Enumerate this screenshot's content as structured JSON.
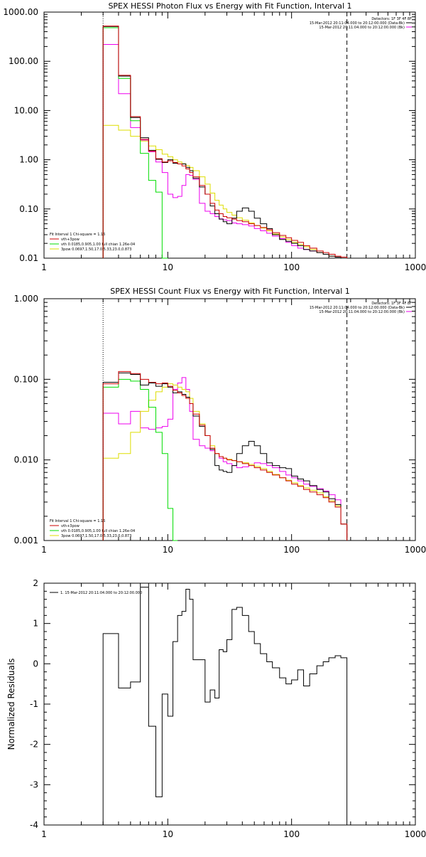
{
  "colors": {
    "data": "#000000",
    "total": "#cc0000",
    "thermal": "#00dd00",
    "powerlaw": "#dddd00",
    "background": "#ee00ee",
    "axis": "#000000"
  },
  "chart_data": [
    {
      "type": "line",
      "title": "SPEX HESSI Photon Flux vs Energy with Fit Function, Interval 1",
      "xscale": "log",
      "yscale": "log",
      "xlim": [
        1,
        1000
      ],
      "ylim": [
        0.01,
        1000
      ],
      "xticklabels": [
        "1",
        "10",
        "100",
        "1000"
      ],
      "yticklabels": [
        "0.01",
        "0.10",
        "1.00",
        "10.00",
        "100.00",
        "1000.00"
      ],
      "legend_right": [
        "Detectors: 1F 3F 4F 8F",
        "15-Mar-2012 20:11:04.000 to 20:12:00.000 (Data-Bk)",
        "15-Mar-2012 20:11:04.000 to 20:12:00.000 (Bk)"
      ],
      "legend_left": [
        "Fit Interval 1    Chi-square = 1.16",
        "vth+3pow",
        "vth 0.0185,0.905,1.00  full chian 1.26e-04",
        "3pow 0.0697,1.50,17.0,5.33,23.0,0.873"
      ],
      "xlines": [
        3,
        280
      ],
      "bin_edges": [
        3,
        4,
        5,
        6,
        7,
        8,
        9,
        10,
        11,
        12,
        13,
        14,
        15,
        16,
        18,
        20,
        22,
        24,
        26,
        28,
        30,
        33,
        36,
        40,
        45,
        50,
        56,
        63,
        70,
        80,
        90,
        100,
        112,
        125,
        140,
        160,
        180,
        200,
        225,
        250,
        280
      ],
      "series": [
        {
          "role": "data",
          "values": [
            510,
            50,
            7.2,
            2.8,
            1.55,
            1.02,
            0.88,
            1.0,
            0.85,
            0.82,
            0.82,
            0.7,
            0.6,
            0.42,
            0.28,
            0.2,
            0.115,
            0.08,
            0.062,
            0.055,
            0.05,
            0.065,
            0.09,
            0.105,
            0.09,
            0.065,
            0.05,
            0.04,
            0.03,
            0.024,
            0.022,
            0.02,
            0.018,
            0.015,
            0.014,
            0.013,
            0.012,
            0.011,
            0.0105,
            0.01
          ]
        },
        {
          "role": "total",
          "values": [
            520,
            52,
            7.5,
            2.6,
            1.5,
            1.05,
            0.9,
            0.95,
            0.88,
            0.82,
            0.75,
            0.65,
            0.55,
            0.45,
            0.3,
            0.2,
            0.13,
            0.095,
            0.08,
            0.07,
            0.066,
            0.062,
            0.058,
            0.055,
            0.05,
            0.046,
            0.042,
            0.038,
            0.033,
            0.029,
            0.026,
            0.023,
            0.021,
            0.018,
            0.016,
            0.014,
            0.013,
            0.012,
            0.011,
            0.0105
          ]
        },
        {
          "role": "thermal",
          "values": [
            480,
            45,
            6.2,
            1.35,
            0.38,
            0.22,
            0.0095
          ]
        },
        {
          "role": "powerlaw",
          "values": [
            5.0,
            4.0,
            3.0,
            2.4,
            1.9,
            1.6,
            1.3,
            1.15,
            1.0,
            0.9,
            0.83,
            0.76,
            0.7,
            0.6,
            0.45,
            0.32,
            0.21,
            0.15,
            0.12,
            0.1,
            0.085,
            0.075,
            0.066,
            0.059,
            0.052,
            0.046,
            0.041,
            0.036,
            0.031,
            0.027,
            0.024,
            0.021,
            0.019,
            0.017,
            0.015,
            0.013,
            0.012,
            0.011,
            0.0105,
            0.0098
          ]
        },
        {
          "role": "background",
          "values": [
            220,
            22,
            4.5,
            2.5,
            1.45,
            0.9,
            0.55,
            0.2,
            0.17,
            0.18,
            0.3,
            0.5,
            0.48,
            0.4,
            0.13,
            0.09,
            0.08,
            0.07,
            0.063,
            0.06,
            0.058,
            0.052,
            0.05,
            0.048,
            0.045,
            0.04,
            0.036,
            0.032,
            0.028,
            0.025,
            0.021,
            0.018,
            0.016,
            0.015,
            0.014,
            0.013,
            0.012,
            0.011,
            0.0105,
            0.01
          ]
        }
      ]
    },
    {
      "type": "line",
      "title": "SPEX HESSI Count Flux vs Energy with Fit Function, Interval 1",
      "xscale": "log",
      "yscale": "log",
      "xlim": [
        1,
        1000
      ],
      "ylim": [
        0.001,
        1
      ],
      "xticklabels": [
        "1",
        "10",
        "100",
        "1000"
      ],
      "yticklabels": [
        "0.001",
        "0.010",
        "0.100",
        "1.000"
      ],
      "legend_right": [
        "Detectors: 1F 3F 4F 8F",
        "15-Mar-2012 20:11:04.000 to 20:12:00.000 (Data-Bk)",
        "15-Mar-2012 20:11:04.000 to 20:12:00.000 (Bk)"
      ],
      "legend_left": [
        "Fit Interval 1    Chi-square = 1.16",
        "vth+3pow",
        "vth 0.0185,0.905,1.00  full chian 1.26e-04",
        "3pow 0.0697,1.50,17.0,5.33,23.0,0.873"
      ],
      "xlines": [
        3,
        280
      ],
      "bin_edges": [
        3,
        4,
        5,
        6,
        7,
        8,
        9,
        10,
        11,
        12,
        13,
        14,
        15,
        16,
        18,
        20,
        22,
        24,
        26,
        28,
        30,
        33,
        36,
        40,
        45,
        50,
        56,
        63,
        70,
        80,
        90,
        100,
        112,
        125,
        140,
        160,
        180,
        200,
        225,
        250,
        280
      ],
      "series": [
        {
          "role": "data",
          "values": [
            0.092,
            0.12,
            0.115,
            0.085,
            0.09,
            0.082,
            0.088,
            0.08,
            0.068,
            0.07,
            0.065,
            0.06,
            0.05,
            0.035,
            0.026,
            0.02,
            0.0135,
            0.0085,
            0.0075,
            0.0072,
            0.007,
            0.0085,
            0.012,
            0.015,
            0.017,
            0.015,
            0.012,
            0.0092,
            0.0085,
            0.008,
            0.0078,
            0.0063,
            0.0058,
            0.0055,
            0.0048,
            0.0043,
            0.004,
            0.0033,
            0.0028,
            0.0016
          ]
        },
        {
          "role": "total",
          "values": [
            0.088,
            0.125,
            0.118,
            0.1,
            0.092,
            0.088,
            0.09,
            0.082,
            0.073,
            0.068,
            0.063,
            0.058,
            0.05,
            0.037,
            0.027,
            0.02,
            0.014,
            0.012,
            0.011,
            0.0105,
            0.01,
            0.0098,
            0.0095,
            0.009,
            0.0085,
            0.008,
            0.0075,
            0.007,
            0.0065,
            0.006,
            0.0055,
            0.005,
            0.0047,
            0.0043,
            0.004,
            0.0037,
            0.0034,
            0.003,
            0.0026,
            0.0016
          ]
        },
        {
          "role": "thermal",
          "values": [
            0.08,
            0.1,
            0.095,
            0.075,
            0.045,
            0.022,
            0.012,
            0.0025,
            0.0009
          ]
        },
        {
          "role": "powerlaw",
          "values": [
            0.0105,
            0.012,
            0.022,
            0.04,
            0.055,
            0.07,
            0.08,
            0.088,
            0.085,
            0.08,
            0.075,
            0.07,
            0.058,
            0.04,
            0.028,
            0.02,
            0.015,
            0.012,
            0.011,
            0.0105,
            0.0102,
            0.0098,
            0.0095,
            0.0092,
            0.0088,
            0.0083,
            0.0078,
            0.0072,
            0.0066,
            0.006,
            0.0056,
            0.0052,
            0.0048,
            0.0045,
            0.0042,
            0.0039,
            0.0035,
            0.0031,
            0.0027,
            0.0016
          ]
        },
        {
          "role": "background",
          "values": [
            0.038,
            0.028,
            0.04,
            0.025,
            0.024,
            0.025,
            0.026,
            0.032,
            0.075,
            0.09,
            0.105,
            0.075,
            0.04,
            0.018,
            0.015,
            0.014,
            0.013,
            0.012,
            0.0105,
            0.0095,
            0.009,
            0.0085,
            0.008,
            0.0082,
            0.0088,
            0.0092,
            0.009,
            0.0085,
            0.008,
            0.0072,
            0.0065,
            0.006,
            0.0055,
            0.005,
            0.0047,
            0.0044,
            0.0041,
            0.0037,
            0.0032,
            0.0016
          ]
        }
      ]
    },
    {
      "type": "line",
      "title": "",
      "ylabel": "Normalized Residuals",
      "xscale": "log",
      "yscale": "linear",
      "xlim": [
        1,
        1000
      ],
      "ylim": [
        -4,
        2
      ],
      "xticklabels": [
        "1",
        "10",
        "100",
        "1000"
      ],
      "yticklabels": [
        "-4",
        "-3",
        "-2",
        "-1",
        "0",
        "1",
        "2"
      ],
      "legend_left": [
        "1. 15-Mar-2012 20:11:04.000 to 20:12:00.000"
      ],
      "bin_edges": [
        3,
        4,
        5,
        6,
        7,
        8,
        9,
        10,
        11,
        12,
        13,
        14,
        15,
        16,
        18,
        20,
        22,
        24,
        26,
        28,
        30,
        33,
        36,
        40,
        45,
        50,
        56,
        63,
        70,
        80,
        90,
        100,
        112,
        125,
        140,
        160,
        180,
        200,
        225,
        250,
        280
      ],
      "series": [
        {
          "role": "data",
          "values": [
            0.75,
            -0.6,
            -0.45,
            1.9,
            -1.55,
            -3.3,
            -0.75,
            -1.3,
            0.55,
            1.2,
            1.3,
            1.85,
            1.6,
            0.1,
            0.1,
            -0.95,
            -0.65,
            -0.85,
            0.35,
            0.3,
            0.6,
            1.35,
            1.4,
            1.2,
            0.8,
            0.5,
            0.25,
            0.05,
            -0.1,
            -0.35,
            -0.5,
            -0.4,
            -0.15,
            -0.55,
            -0.25,
            -0.05,
            0.05,
            0.15,
            0.2,
            0.15
          ]
        }
      ]
    }
  ]
}
